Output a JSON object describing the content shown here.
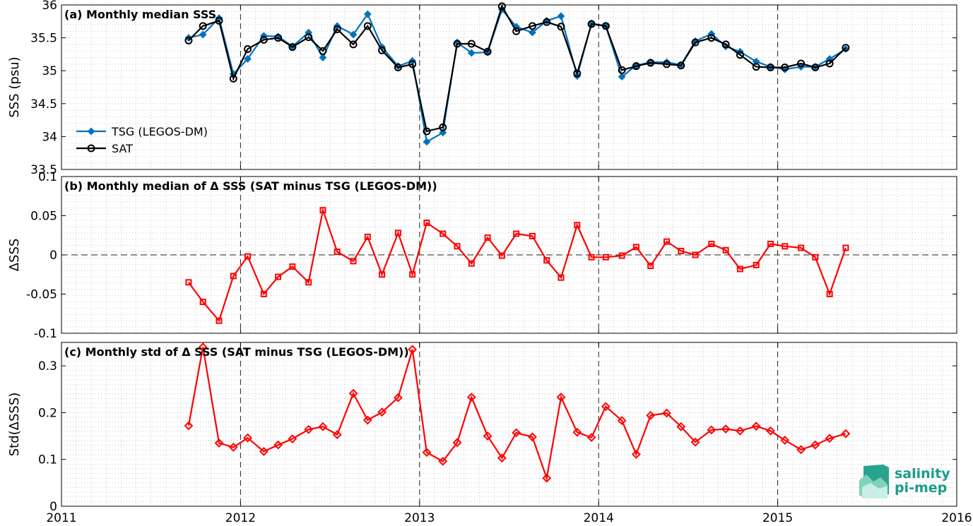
{
  "chart_data": [
    {
      "type": "line",
      "title": "(a) Monthly median SSS",
      "xlabel": "",
      "ylabel": "SSS (psu)",
      "xlim": [
        2011,
        2016
      ],
      "ylim": [
        33.5,
        36
      ],
      "yticks": [
        "33.5",
        "34",
        "34.5",
        "35",
        "35.5",
        "36"
      ],
      "grid": true,
      "legend": "left",
      "series": [
        {
          "name": "TSG (LEGOS-DM)",
          "color": "#0072bd",
          "marker": "diamond",
          "x": [
            2011.71,
            2011.79,
            2011.88,
            2011.96,
            2012.04,
            2012.13,
            2012.21,
            2012.29,
            2012.38,
            2012.46,
            2012.54,
            2012.63,
            2012.71,
            2012.79,
            2012.88,
            2012.96,
            2013.04,
            2013.13,
            2013.21,
            2013.29,
            2013.38,
            2013.46,
            2013.54,
            2013.63,
            2013.71,
            2013.79,
            2013.88,
            2013.96,
            2014.04,
            2014.13,
            2014.21,
            2014.29,
            2014.38,
            2014.46,
            2014.54,
            2014.63,
            2014.71,
            2014.79,
            2014.88,
            2014.96,
            2015.04,
            2015.13,
            2015.21,
            2015.29,
            2015.38
          ],
          "y": [
            35.5,
            35.55,
            35.8,
            34.95,
            35.18,
            35.53,
            35.52,
            35.37,
            35.58,
            35.2,
            35.68,
            35.55,
            35.86,
            35.36,
            35.07,
            35.15,
            33.92,
            34.06,
            35.43,
            35.27,
            35.28,
            35.93,
            35.67,
            35.58,
            35.76,
            35.83,
            34.92,
            35.72,
            35.68,
            34.91,
            35.08,
            35.13,
            35.13,
            35.09,
            35.45,
            35.56,
            35.37,
            35.29,
            35.14,
            35.06,
            35.02,
            35.06,
            35.06,
            35.18,
            35.33
          ]
        },
        {
          "name": "SAT",
          "color": "#000000",
          "marker": "circle",
          "x": [
            2011.71,
            2011.79,
            2011.88,
            2011.96,
            2012.04,
            2012.13,
            2012.21,
            2012.29,
            2012.38,
            2012.46,
            2012.54,
            2012.63,
            2012.71,
            2012.79,
            2012.88,
            2012.96,
            2013.04,
            2013.13,
            2013.21,
            2013.29,
            2013.38,
            2013.46,
            2013.54,
            2013.63,
            2013.71,
            2013.79,
            2013.88,
            2013.96,
            2014.04,
            2014.13,
            2014.21,
            2014.29,
            2014.38,
            2014.46,
            2014.54,
            2014.63,
            2014.71,
            2014.79,
            2014.88,
            2014.96,
            2015.04,
            2015.13,
            2015.21,
            2015.29,
            2015.38
          ],
          "y": [
            35.46,
            35.68,
            35.76,
            34.88,
            35.33,
            35.47,
            35.5,
            35.36,
            35.51,
            35.3,
            35.63,
            35.4,
            35.68,
            35.31,
            35.05,
            35.1,
            34.08,
            34.14,
            35.41,
            35.41,
            35.29,
            35.98,
            35.6,
            35.68,
            35.74,
            35.67,
            34.96,
            35.71,
            35.68,
            35.01,
            35.07,
            35.12,
            35.1,
            35.08,
            35.43,
            35.5,
            35.4,
            35.24,
            35.06,
            35.05,
            35.05,
            35.11,
            35.05,
            35.11,
            35.35
          ]
        }
      ]
    },
    {
      "type": "line",
      "title": "(b) Monthly median of Δ SSS (SAT minus TSG (LEGOS-DM))",
      "xlabel": "",
      "ylabel": "ΔSSS",
      "xlim": [
        2011,
        2016
      ],
      "ylim": [
        -0.1,
        0.1
      ],
      "yticks": [
        "-0.1",
        "-0.05",
        "0",
        "0.05",
        "0.1"
      ],
      "grid": true,
      "series": [
        {
          "name": "",
          "color": "#ff0000",
          "marker": "square",
          "x": [
            2011.71,
            2011.79,
            2011.88,
            2011.96,
            2012.04,
            2012.13,
            2012.21,
            2012.29,
            2012.38,
            2012.46,
            2012.54,
            2012.63,
            2012.71,
            2012.79,
            2012.88,
            2012.96,
            2013.04,
            2013.13,
            2013.21,
            2013.29,
            2013.38,
            2013.46,
            2013.54,
            2013.63,
            2013.71,
            2013.79,
            2013.88,
            2013.96,
            2014.04,
            2014.13,
            2014.21,
            2014.29,
            2014.38,
            2014.46,
            2014.54,
            2014.63,
            2014.71,
            2014.79,
            2014.88,
            2014.96,
            2015.04,
            2015.13,
            2015.21,
            2015.29,
            2015.38
          ],
          "y": [
            -0.035,
            -0.06,
            -0.084,
            -0.027,
            -0.002,
            -0.05,
            -0.028,
            -0.015,
            -0.035,
            0.057,
            0.004,
            -0.008,
            0.023,
            -0.025,
            0.028,
            -0.025,
            0.041,
            0.027,
            0.011,
            -0.011,
            0.022,
            -0.001,
            0.027,
            0.024,
            -0.007,
            -0.029,
            0.038,
            -0.003,
            -0.003,
            -0.001,
            0.01,
            -0.014,
            0.017,
            0.005,
            0,
            0.014,
            0.006,
            -0.018,
            -0.013,
            0.014,
            0.011,
            0.009,
            -0.003,
            -0.05,
            0.009
          ]
        }
      ]
    },
    {
      "type": "line",
      "title": "(c) Monthly std of Δ SSS (SAT minus TSG (LEGOS-DM))",
      "xlabel": "",
      "ylabel": "Std(ΔSSS)",
      "xlim": [
        2011,
        2016
      ],
      "ylim": [
        0,
        0.35
      ],
      "yticks": [
        "0",
        "0.1",
        "0.2",
        "0.3"
      ],
      "xticks": [
        "2011",
        "2012",
        "2013",
        "2014",
        "2015",
        "2016"
      ],
      "grid": true,
      "series": [
        {
          "name": "",
          "color": "#ff0000",
          "marker": "diamond",
          "x": [
            2011.71,
            2011.79,
            2011.88,
            2011.96,
            2012.04,
            2012.13,
            2012.21,
            2012.29,
            2012.38,
            2012.46,
            2012.54,
            2012.63,
            2012.71,
            2012.79,
            2012.88,
            2012.96,
            2013.04,
            2013.13,
            2013.21,
            2013.29,
            2013.38,
            2013.46,
            2013.54,
            2013.63,
            2013.71,
            2013.79,
            2013.88,
            2013.96,
            2014.04,
            2014.13,
            2014.21,
            2014.29,
            2014.38,
            2014.46,
            2014.54,
            2014.63,
            2014.71,
            2014.79,
            2014.88,
            2014.96,
            2015.04,
            2015.13,
            2015.21,
            2015.29,
            2015.38
          ],
          "y": [
            0.172,
            0.34,
            0.135,
            0.126,
            0.146,
            0.117,
            0.131,
            0.144,
            0.164,
            0.17,
            0.153,
            0.241,
            0.184,
            0.201,
            0.232,
            0.335,
            0.115,
            0.096,
            0.136,
            0.233,
            0.15,
            0.103,
            0.157,
            0.148,
            0.06,
            0.233,
            0.158,
            0.147,
            0.213,
            0.183,
            0.111,
            0.194,
            0.199,
            0.17,
            0.137,
            0.163,
            0.165,
            0.161,
            0.171,
            0.161,
            0.141,
            0.121,
            0.131,
            0.145,
            0.155
          ]
        }
      ]
    }
  ],
  "logo": {
    "line1": "salinity",
    "line2": "pi-mep",
    "color": "#1a9c8c"
  }
}
